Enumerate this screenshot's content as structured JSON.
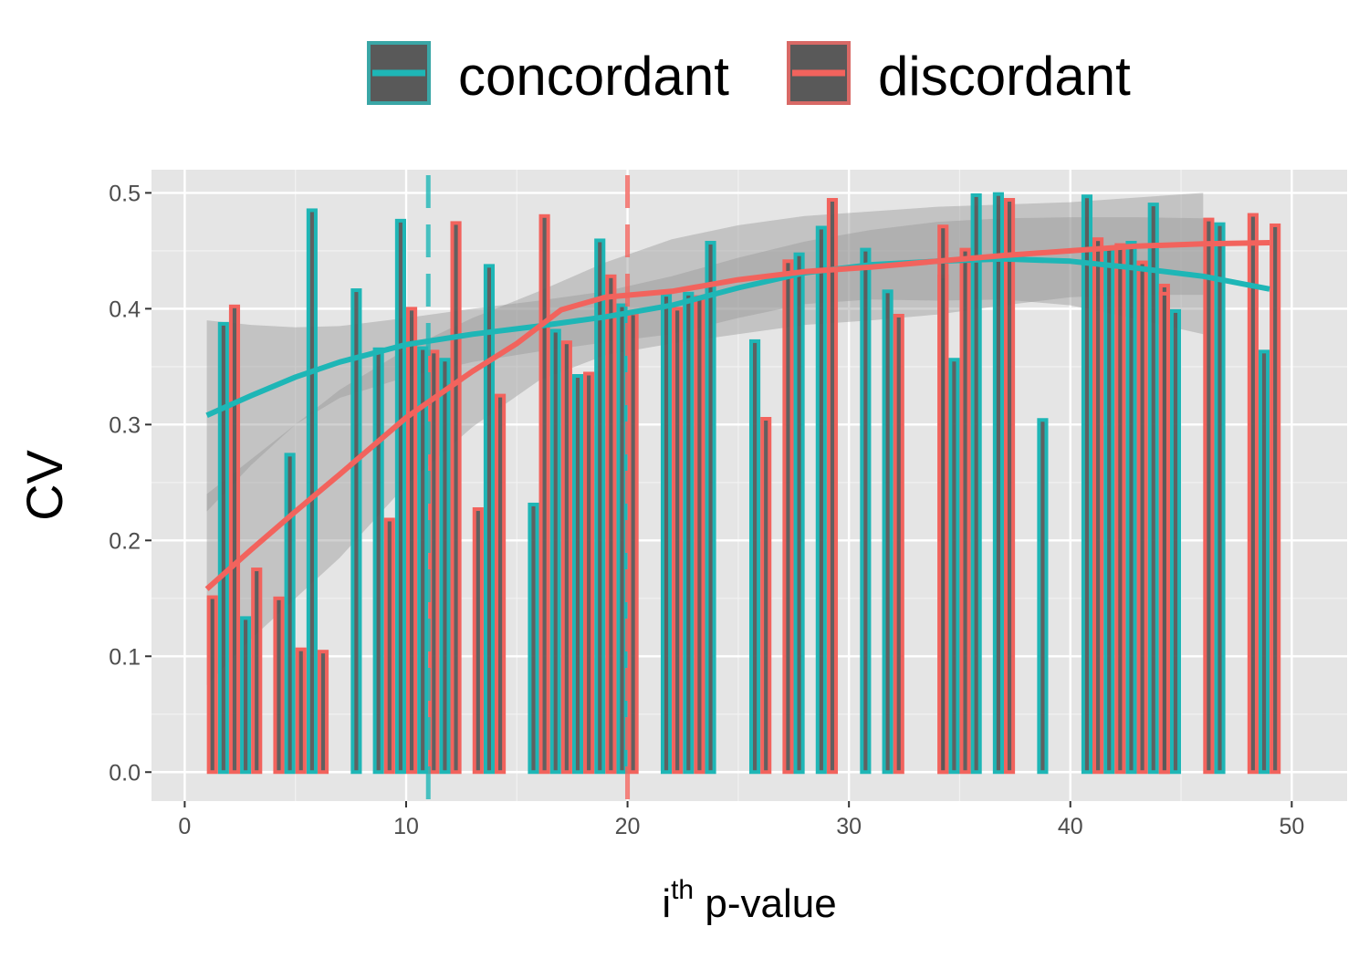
{
  "chart_data": {
    "type": "bar",
    "title": "",
    "xlabel_base": "i",
    "xlabel_sup": "th",
    "xlabel_rest": " p-value",
    "ylabel": "CV",
    "xlim": [
      -1.5,
      52.5
    ],
    "ylim": [
      -0.025,
      0.52
    ],
    "x_ticks": [
      0,
      10,
      20,
      30,
      40,
      50
    ],
    "y_ticks": [
      0.0,
      0.1,
      0.2,
      0.3,
      0.4,
      0.5
    ],
    "x_tick_labels": [
      "0",
      "10",
      "20",
      "30",
      "40",
      "50"
    ],
    "y_tick_labels": [
      "0.0",
      "0.1",
      "0.2",
      "0.3",
      "0.4",
      "0.5"
    ],
    "grid": true,
    "legend_position": "top",
    "legend": [
      {
        "name": "concordant",
        "color": "#1EB6B6"
      },
      {
        "name": "discordant",
        "color": "#F2635D"
      }
    ],
    "series": [
      {
        "name": "concordant",
        "color": "#1EB6B6",
        "bars": [
          {
            "x": 2,
            "y": 0.387
          },
          {
            "x": 3,
            "y": 0.133
          },
          {
            "x": 5,
            "y": 0.274
          },
          {
            "x": 6,
            "y": 0.485
          },
          {
            "x": 8,
            "y": 0.416
          },
          {
            "x": 9,
            "y": 0.365
          },
          {
            "x": 10,
            "y": 0.476
          },
          {
            "x": 11,
            "y": 0.366
          },
          {
            "x": 12,
            "y": 0.356
          },
          {
            "x": 14,
            "y": 0.437
          },
          {
            "x": 16,
            "y": 0.231
          },
          {
            "x": 17,
            "y": 0.381
          },
          {
            "x": 18,
            "y": 0.342
          },
          {
            "x": 19,
            "y": 0.459
          },
          {
            "x": 20,
            "y": 0.403
          },
          {
            "x": 22,
            "y": 0.412
          },
          {
            "x": 23,
            "y": 0.413
          },
          {
            "x": 24,
            "y": 0.457
          },
          {
            "x": 26,
            "y": 0.372
          },
          {
            "x": 28,
            "y": 0.447
          },
          {
            "x": 29,
            "y": 0.47
          },
          {
            "x": 31,
            "y": 0.451
          },
          {
            "x": 32,
            "y": 0.415
          },
          {
            "x": 35,
            "y": 0.356
          },
          {
            "x": 36,
            "y": 0.498
          },
          {
            "x": 37,
            "y": 0.499
          },
          {
            "x": 39,
            "y": 0.304
          },
          {
            "x": 41,
            "y": 0.497
          },
          {
            "x": 42,
            "y": 0.452
          },
          {
            "x": 43,
            "y": 0.457
          },
          {
            "x": 44,
            "y": 0.49
          },
          {
            "x": 45,
            "y": 0.398
          },
          {
            "x": 47,
            "y": 0.473
          },
          {
            "x": 49,
            "y": 0.363
          }
        ],
        "smooth": [
          [
            1,
            0.308
          ],
          [
            3,
            0.325
          ],
          [
            5,
            0.341
          ],
          [
            7,
            0.354
          ],
          [
            10,
            0.369
          ],
          [
            13,
            0.378
          ],
          [
            16,
            0.385
          ],
          [
            19,
            0.393
          ],
          [
            22,
            0.403
          ],
          [
            25,
            0.418
          ],
          [
            28,
            0.431
          ],
          [
            31,
            0.438
          ],
          [
            34,
            0.441
          ],
          [
            37,
            0.443
          ],
          [
            40,
            0.441
          ],
          [
            43,
            0.435
          ],
          [
            46,
            0.428
          ],
          [
            49,
            0.417
          ]
        ],
        "band_upper": [
          [
            1,
            0.39
          ],
          [
            3,
            0.386
          ],
          [
            5,
            0.384
          ],
          [
            7,
            0.385
          ],
          [
            10,
            0.392
          ],
          [
            13,
            0.4
          ],
          [
            16,
            0.407
          ],
          [
            19,
            0.415
          ],
          [
            22,
            0.428
          ],
          [
            25,
            0.444
          ],
          [
            28,
            0.458
          ],
          [
            31,
            0.468
          ],
          [
            34,
            0.475
          ],
          [
            37,
            0.478
          ],
          [
            40,
            0.479
          ],
          [
            43,
            0.479
          ],
          [
            46,
            0.478
          ]
        ],
        "band_lower": [
          [
            46,
            0.378
          ],
          [
            43,
            0.391
          ],
          [
            40,
            0.403
          ],
          [
            37,
            0.408
          ],
          [
            34,
            0.407
          ],
          [
            31,
            0.408
          ],
          [
            28,
            0.404
          ],
          [
            25,
            0.392
          ],
          [
            22,
            0.378
          ],
          [
            19,
            0.371
          ],
          [
            16,
            0.363
          ],
          [
            13,
            0.354
          ],
          [
            10,
            0.341
          ],
          [
            7,
            0.323
          ],
          [
            5,
            0.3
          ],
          [
            3,
            0.265
          ],
          [
            1,
            0.225
          ]
        ]
      },
      {
        "name": "discordant",
        "color": "#F2635D",
        "bars": [
          {
            "x": 1,
            "y": 0.151
          },
          {
            "x": 2,
            "y": 0.402
          },
          {
            "x": 3,
            "y": 0.175
          },
          {
            "x": 4,
            "y": 0.15
          },
          {
            "x": 5,
            "y": 0.106
          },
          {
            "x": 6,
            "y": 0.104
          },
          {
            "x": 9,
            "y": 0.218
          },
          {
            "x": 10,
            "y": 0.4
          },
          {
            "x": 11,
            "y": 0.363
          },
          {
            "x": 12,
            "y": 0.474
          },
          {
            "x": 13,
            "y": 0.227
          },
          {
            "x": 14,
            "y": 0.325
          },
          {
            "x": 16,
            "y": 0.48
          },
          {
            "x": 17,
            "y": 0.371
          },
          {
            "x": 18,
            "y": 0.344
          },
          {
            "x": 19,
            "y": 0.428
          },
          {
            "x": 20,
            "y": 0.396
          },
          {
            "x": 22,
            "y": 0.4
          },
          {
            "x": 23,
            "y": 0.41
          },
          {
            "x": 26,
            "y": 0.305
          },
          {
            "x": 27,
            "y": 0.441
          },
          {
            "x": 29,
            "y": 0.494
          },
          {
            "x": 32,
            "y": 0.394
          },
          {
            "x": 34,
            "y": 0.428
          },
          {
            "x": 34,
            "y": 0.471
          },
          {
            "x": 35,
            "y": 0.451
          },
          {
            "x": 37,
            "y": 0.494
          },
          {
            "x": 41,
            "y": 0.46
          },
          {
            "x": 42,
            "y": 0.455
          },
          {
            "x": 43,
            "y": 0.44
          },
          {
            "x": 44,
            "y": 0.42
          },
          {
            "x": 44,
            "y": 0.413
          },
          {
            "x": 46,
            "y": 0.477
          },
          {
            "x": 48,
            "y": 0.481
          },
          {
            "x": 49,
            "y": 0.472
          }
        ],
        "smooth": [
          [
            1,
            0.158
          ],
          [
            3,
            0.192
          ],
          [
            5,
            0.225
          ],
          [
            7,
            0.257
          ],
          [
            10,
            0.306
          ],
          [
            13,
            0.346
          ],
          [
            15,
            0.37
          ],
          [
            17,
            0.399
          ],
          [
            19,
            0.41
          ],
          [
            22,
            0.415
          ],
          [
            25,
            0.425
          ],
          [
            28,
            0.432
          ],
          [
            31,
            0.436
          ],
          [
            34,
            0.441
          ],
          [
            37,
            0.446
          ],
          [
            40,
            0.45
          ],
          [
            43,
            0.454
          ],
          [
            46,
            0.456
          ],
          [
            49,
            0.457
          ]
        ],
        "band_upper": [
          [
            1,
            0.24
          ],
          [
            3,
            0.27
          ],
          [
            5,
            0.3
          ],
          [
            7,
            0.33
          ],
          [
            10,
            0.365
          ],
          [
            13,
            0.392
          ],
          [
            16,
            0.415
          ],
          [
            19,
            0.44
          ],
          [
            22,
            0.46
          ],
          [
            25,
            0.472
          ],
          [
            28,
            0.48
          ],
          [
            31,
            0.484
          ],
          [
            34,
            0.488
          ],
          [
            37,
            0.49
          ],
          [
            40,
            0.492
          ],
          [
            43,
            0.496
          ],
          [
            46,
            0.5
          ]
        ],
        "band_lower": [
          [
            46,
            0.412
          ],
          [
            43,
            0.412
          ],
          [
            40,
            0.41
          ],
          [
            37,
            0.403
          ],
          [
            34,
            0.395
          ],
          [
            31,
            0.39
          ],
          [
            28,
            0.386
          ],
          [
            25,
            0.378
          ],
          [
            22,
            0.37
          ],
          [
            19,
            0.36
          ],
          [
            16,
            0.338
          ],
          [
            13,
            0.298
          ],
          [
            10,
            0.248
          ],
          [
            7,
            0.185
          ],
          [
            5,
            0.15
          ],
          [
            3,
            0.115
          ],
          [
            1,
            0.075
          ]
        ]
      }
    ],
    "vlines": [
      {
        "x": 11,
        "color": "#1EB6B6"
      },
      {
        "x": 20,
        "color": "#F2635D"
      }
    ]
  }
}
